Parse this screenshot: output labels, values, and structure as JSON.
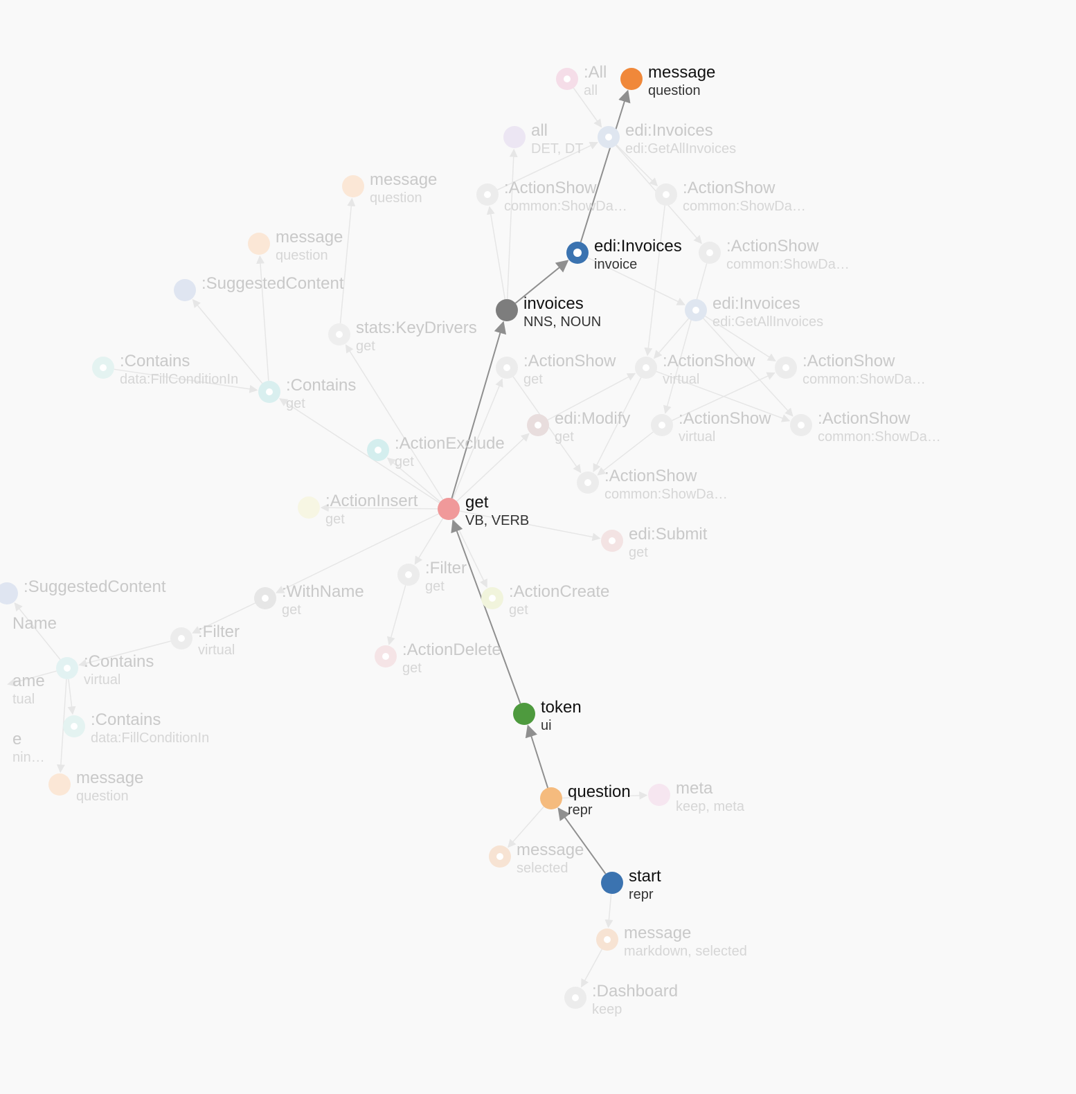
{
  "colors": {
    "background": "#f9f9f9",
    "edge_active": "#8f8f8f",
    "edge_inactive": "#e6e6e6"
  },
  "nodes": [
    {
      "id": "message_top",
      "label": "message",
      "sub": "question",
      "color": "#f0883a",
      "style": "solid",
      "active": true
    },
    {
      "id": "edi_invoices_main",
      "label": "edi:Invoices",
      "sub": "invoice",
      "color": "#3b73b0",
      "style": "ring",
      "active": true
    },
    {
      "id": "invoices",
      "label": "invoices",
      "sub": "NNS, NOUN",
      "color": "#7d7d7d",
      "style": "solid",
      "active": true
    },
    {
      "id": "get",
      "label": "get",
      "sub": "VB, VERB",
      "color": "#f0999a",
      "style": "solid",
      "active": true
    },
    {
      "id": "token",
      "label": "token",
      "sub": "ui",
      "color": "#4e9a3e",
      "style": "solid",
      "active": true
    },
    {
      "id": "question",
      "label": "question",
      "sub": "repr",
      "color": "#f5bb7e",
      "style": "solid",
      "active": true
    },
    {
      "id": "start",
      "label": "start",
      "sub": "repr",
      "color": "#3b73b0",
      "style": "solid",
      "active": true
    },
    {
      "id": "all_all",
      "label": ":All",
      "sub": "all",
      "color": "#f5dde8",
      "style": "ring",
      "active": false
    },
    {
      "id": "all_det",
      "label": "all",
      "sub": "DET, DT",
      "color": "#ece6f3",
      "style": "solid",
      "active": false
    },
    {
      "id": "edi_inv_1",
      "label": "edi:Invoices",
      "sub": "edi:GetAllInvoices",
      "color": "#dfe6f0",
      "style": "ring",
      "active": false
    },
    {
      "id": "as_1",
      "label": ":ActionShow",
      "sub": "common:ShowDa…",
      "color": "#ececec",
      "style": "ring",
      "active": false
    },
    {
      "id": "as_2",
      "label": ":ActionShow",
      "sub": "common:ShowDa…",
      "color": "#ececec",
      "style": "ring",
      "active": false
    },
    {
      "id": "as_3",
      "label": ":ActionShow",
      "sub": "common:ShowDa…",
      "color": "#ececec",
      "style": "ring",
      "active": false
    },
    {
      "id": "edi_inv_2",
      "label": "edi:Invoices",
      "sub": "edi:GetAllInvoices",
      "color": "#dfe6f0",
      "style": "ring",
      "active": false
    },
    {
      "id": "msg_q1",
      "label": "message",
      "sub": "question",
      "color": "#fbe7d6",
      "style": "solid",
      "active": false
    },
    {
      "id": "msg_q2",
      "label": "message",
      "sub": "question",
      "color": "#fbe7d6",
      "style": "solid",
      "active": false
    },
    {
      "id": "suggested_1",
      "label": ":SuggestedContent",
      "sub": "",
      "color": "#dfe5f1",
      "style": "solid",
      "active": false
    },
    {
      "id": "stats_kd",
      "label": "stats:KeyDrivers",
      "sub": "get",
      "color": "#eeeeee",
      "style": "ring",
      "active": false
    },
    {
      "id": "contains_fci_1",
      "label": ":Contains",
      "sub": "data:FillConditionIn",
      "color": "#e4f3f1",
      "style": "ring",
      "active": false
    },
    {
      "id": "contains_get",
      "label": ":Contains",
      "sub": "get",
      "color": "#d9efef",
      "style": "ring",
      "active": false
    },
    {
      "id": "as_get",
      "label": ":ActionShow",
      "sub": "get",
      "color": "#ececec",
      "style": "ring",
      "active": false
    },
    {
      "id": "as_virtual_1",
      "label": ":ActionShow",
      "sub": "virtual",
      "color": "#ececec",
      "style": "ring",
      "active": false
    },
    {
      "id": "as_4",
      "label": ":ActionShow",
      "sub": "common:ShowDa…",
      "color": "#ececec",
      "style": "ring",
      "active": false
    },
    {
      "id": "edi_modify",
      "label": "edi:Modify",
      "sub": "get",
      "color": "#e8dddd",
      "style": "ring",
      "active": false
    },
    {
      "id": "as_virtual_2",
      "label": ":ActionShow",
      "sub": "virtual",
      "color": "#ececec",
      "style": "ring",
      "active": false
    },
    {
      "id": "as_5",
      "label": ":ActionShow",
      "sub": "common:ShowDa…",
      "color": "#ececec",
      "style": "ring",
      "active": false
    },
    {
      "id": "action_exclude",
      "label": ":ActionExclude",
      "sub": "get",
      "color": "#d4eeee",
      "style": "ring",
      "active": false
    },
    {
      "id": "as_6",
      "label": ":ActionShow",
      "sub": "common:ShowDa…",
      "color": "#ececec",
      "style": "ring",
      "active": false
    },
    {
      "id": "action_insert",
      "label": ":ActionInsert",
      "sub": "get",
      "color": "#f7f6e3",
      "style": "solid",
      "active": false
    },
    {
      "id": "edi_submit",
      "label": "edi:Submit",
      "sub": "get",
      "color": "#f3e3e3",
      "style": "ring",
      "active": false
    },
    {
      "id": "filter_get",
      "label": ":Filter",
      "sub": "get",
      "color": "#ececec",
      "style": "ring",
      "active": false
    },
    {
      "id": "suggested_2",
      "label": ":SuggestedContent",
      "sub": "",
      "color": "#dfe5f1",
      "style": "solid",
      "active": false
    },
    {
      "id": "with_name",
      "label": ":WithName",
      "sub": "get",
      "color": "#e6e6e6",
      "style": "ring",
      "active": false
    },
    {
      "id": "action_create",
      "label": ":ActionCreate",
      "sub": "get",
      "color": "#f1f4dc",
      "style": "ring",
      "active": false
    },
    {
      "id": "name_partial_1",
      "label": "Name",
      "sub": "",
      "color": "#f9f9f9",
      "style": "none",
      "active": false
    },
    {
      "id": "filter_virtual",
      "label": ":Filter",
      "sub": "virtual",
      "color": "#ececec",
      "style": "ring",
      "active": false
    },
    {
      "id": "action_delete",
      "label": ":ActionDelete",
      "sub": "get",
      "color": "#f5e4e6",
      "style": "ring",
      "active": false
    },
    {
      "id": "contains_virtual",
      "label": ":Contains",
      "sub": "virtual",
      "color": "#e2f2f2",
      "style": "ring",
      "active": false
    },
    {
      "id": "name_partial_2",
      "label": "ame",
      "sub": "tual",
      "color": "#f9f9f9",
      "style": "none",
      "active": false
    },
    {
      "id": "contains_fci_2",
      "label": ":Contains",
      "sub": "data:FillConditionIn",
      "color": "#e4f3f1",
      "style": "ring",
      "active": false
    },
    {
      "id": "name_partial_3",
      "label": "e",
      "sub": "nin…",
      "color": "#f9f9f9",
      "style": "none",
      "active": false
    },
    {
      "id": "msg_q3",
      "label": "message",
      "sub": "question",
      "color": "#fbe7d6",
      "style": "solid",
      "active": false
    },
    {
      "id": "meta",
      "label": "meta",
      "sub": "keep, meta",
      "color": "#f6e6f0",
      "style": "solid",
      "active": false
    },
    {
      "id": "msg_selected",
      "label": "message",
      "sub": "selected",
      "color": "#f7e3d3",
      "style": "ring",
      "active": false
    },
    {
      "id": "msg_md",
      "label": "message",
      "sub": "markdown, selected",
      "color": "#f7e3d3",
      "style": "ring",
      "active": false
    },
    {
      "id": "dashboard",
      "label": ":Dashboard",
      "sub": "keep",
      "color": "#ececec",
      "style": "ring",
      "active": false
    }
  ],
  "edges": [
    {
      "from": "start",
      "to": "question",
      "active": true
    },
    {
      "from": "question",
      "to": "token",
      "active": true
    },
    {
      "from": "token",
      "to": "get",
      "active": true
    },
    {
      "from": "get",
      "to": "invoices",
      "active": true
    },
    {
      "from": "invoices",
      "to": "edi_invoices_main",
      "active": true
    },
    {
      "from": "edi_invoices_main",
      "to": "message_top",
      "active": true
    },
    {
      "from": "all_all",
      "to": "edi_inv_1",
      "active": false
    },
    {
      "from": "edi_inv_1",
      "to": "as_2",
      "active": false
    },
    {
      "from": "edi_inv_1",
      "to": "as_3",
      "active": false
    },
    {
      "from": "as_1",
      "to": "edi_inv_1",
      "active": false
    },
    {
      "from": "invoices",
      "to": "all_det",
      "active": false
    },
    {
      "from": "invoices",
      "to": "as_1",
      "active": false
    },
    {
      "from": "edi_invoices_main",
      "to": "edi_inv_2",
      "active": false
    },
    {
      "from": "edi_inv_2",
      "to": "as_4",
      "active": false
    },
    {
      "from": "edi_inv_2",
      "to": "as_5",
      "active": false
    },
    {
      "from": "edi_inv_2",
      "to": "as_virtual_1",
      "active": false
    },
    {
      "from": "as_3",
      "to": "as_virtual_2",
      "active": false
    },
    {
      "from": "as_2",
      "to": "as_virtual_1",
      "active": false
    },
    {
      "from": "as_virtual_1",
      "to": "as_6",
      "active": false
    },
    {
      "from": "as_virtual_2",
      "to": "as_4",
      "active": false
    },
    {
      "from": "as_virtual_1",
      "to": "as_5",
      "active": false
    },
    {
      "from": "as_virtual_2",
      "to": "as_6",
      "active": false
    },
    {
      "from": "get",
      "to": "as_get",
      "active": false
    },
    {
      "from": "as_get",
      "to": "as_6",
      "active": false
    },
    {
      "from": "get",
      "to": "edi_modify",
      "active": false
    },
    {
      "from": "edi_modify",
      "to": "as_virtual_1",
      "active": false
    },
    {
      "from": "get",
      "to": "action_exclude",
      "active": false
    },
    {
      "from": "get",
      "to": "stats_kd",
      "active": false
    },
    {
      "from": "stats_kd",
      "to": "msg_q1",
      "active": false
    },
    {
      "from": "get",
      "to": "contains_get",
      "active": false
    },
    {
      "from": "contains_get",
      "to": "msg_q2",
      "active": false
    },
    {
      "from": "contains_get",
      "to": "suggested_1",
      "active": false
    },
    {
      "from": "contains_fci_1",
      "to": "contains_get",
      "active": false
    },
    {
      "from": "get",
      "to": "action_insert",
      "active": false
    },
    {
      "from": "get",
      "to": "edi_submit",
      "active": false
    },
    {
      "from": "get",
      "to": "filter_get",
      "active": false
    },
    {
      "from": "get",
      "to": "action_create",
      "active": false
    },
    {
      "from": "filter_get",
      "to": "action_delete",
      "active": false
    },
    {
      "from": "get",
      "to": "with_name",
      "active": false
    },
    {
      "from": "with_name",
      "to": "filter_virtual",
      "active": false
    },
    {
      "from": "filter_virtual",
      "to": "contains_virtual",
      "active": false
    },
    {
      "from": "contains_virtual",
      "to": "suggested_2",
      "active": false
    },
    {
      "from": "contains_virtual",
      "to": "contains_fci_2",
      "active": false
    },
    {
      "from": "contains_virtual",
      "to": "msg_q3",
      "active": false
    },
    {
      "from": "contains_virtual",
      "to": "name_partial_2",
      "active": false
    },
    {
      "from": "question",
      "to": "meta",
      "active": false
    },
    {
      "from": "question",
      "to": "msg_selected",
      "active": false
    },
    {
      "from": "start",
      "to": "msg_md",
      "active": false
    },
    {
      "from": "msg_md",
      "to": "dashboard",
      "active": false
    }
  ]
}
